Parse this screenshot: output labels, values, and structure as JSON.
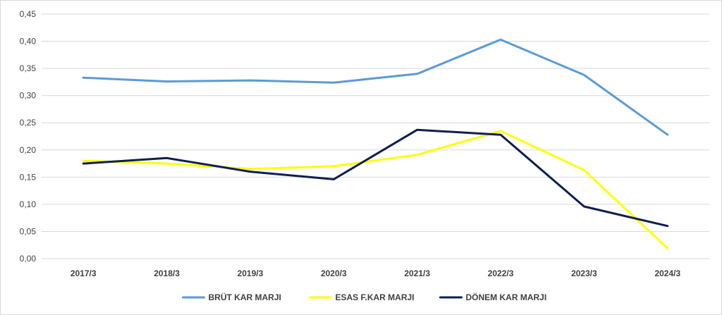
{
  "chart_data": {
    "type": "line",
    "categories": [
      "2017/3",
      "2018/3",
      "2019/3",
      "2020/3",
      "2021/3",
      "2022/3",
      "2023/3",
      "2024/3"
    ],
    "y_ticks": [
      "0,00",
      "0,05",
      "0,10",
      "0,15",
      "0,20",
      "0,25",
      "0,30",
      "0,35",
      "0,40",
      "0,45"
    ],
    "ylim": [
      0,
      0.45
    ],
    "grid": true,
    "legend_position": "bottom",
    "series": [
      {
        "name": "BRÜT KAR MARJI",
        "color": "#5b9bd5",
        "values": [
          0.333,
          0.326,
          0.328,
          0.324,
          0.34,
          0.403,
          0.338,
          0.228
        ]
      },
      {
        "name": "ESAS F.KAR MARJI",
        "color": "#ffff00",
        "values": [
          0.18,
          0.175,
          0.165,
          0.17,
          0.191,
          0.235,
          0.163,
          0.019
        ]
      },
      {
        "name": "DÖNEM KAR MARJI",
        "color": "#0d1f4f",
        "values": [
          0.175,
          0.185,
          0.16,
          0.146,
          0.237,
          0.228,
          0.096,
          0.06
        ]
      }
    ]
  }
}
